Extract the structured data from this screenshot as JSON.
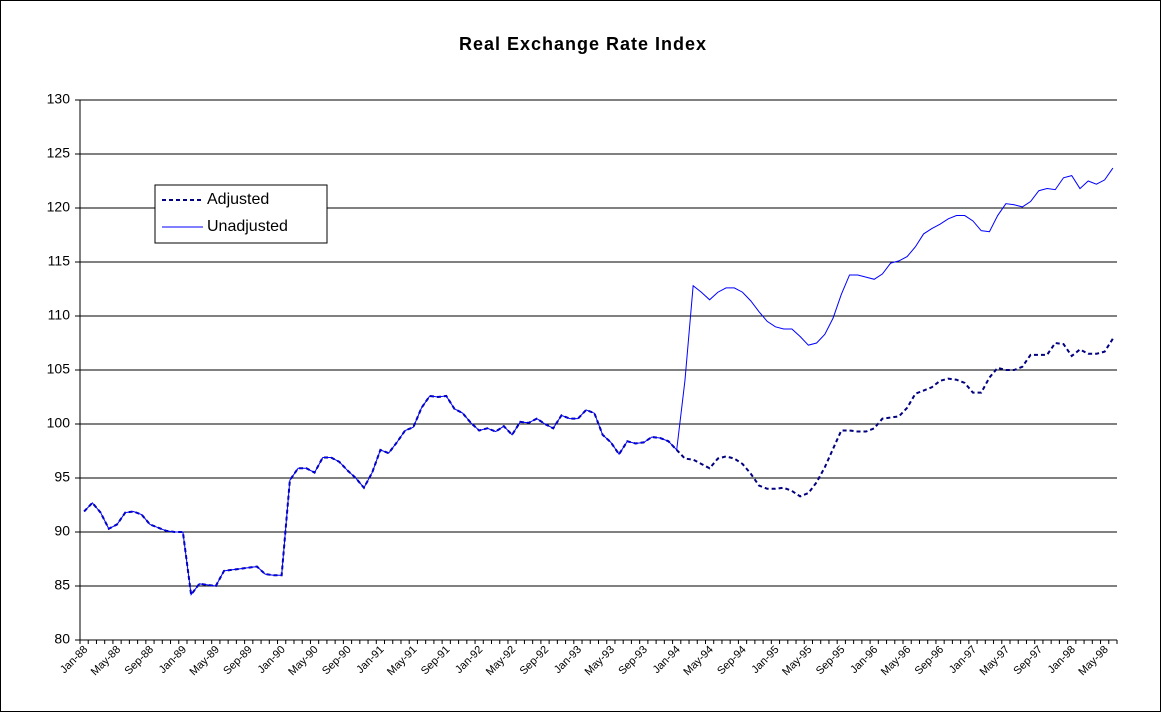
{
  "chart_data": {
    "type": "line",
    "title": "Real Exchange Rate Index",
    "categories": [
      "Jan-88",
      null,
      null,
      null,
      "May-88",
      null,
      null,
      null,
      "Sep-88",
      null,
      null,
      null,
      "Jan-89",
      null,
      null,
      null,
      "May-89",
      null,
      null,
      null,
      "Sep-89",
      null,
      null,
      null,
      "Jan-90",
      null,
      null,
      null,
      "May-90",
      null,
      null,
      null,
      "Sep-90",
      null,
      null,
      null,
      "Jan-91",
      null,
      null,
      null,
      "May-91",
      null,
      null,
      null,
      "Sep-91",
      null,
      null,
      null,
      "Jan-92",
      null,
      null,
      null,
      "May-92",
      null,
      null,
      null,
      "Sep-92",
      null,
      null,
      null,
      "Jan-93",
      null,
      null,
      null,
      "May-93",
      null,
      null,
      null,
      "Sep-93",
      null,
      null,
      null,
      "Jan-94",
      null,
      null,
      null,
      "May-94",
      null,
      null,
      null,
      "Sep-94",
      null,
      null,
      null,
      "Jan-95",
      null,
      null,
      null,
      "May-95",
      null,
      null,
      null,
      "Sep-95",
      null,
      null,
      null,
      "Jan-96",
      null,
      null,
      null,
      "May-96",
      null,
      null,
      null,
      "Sep-96",
      null,
      null,
      null,
      "Jan-97",
      null,
      null,
      null,
      "May-97",
      null,
      null,
      null,
      "Sep-97",
      null,
      null,
      null,
      "Jan-98",
      null,
      null,
      null,
      "May-98",
      null
    ],
    "series": [
      {
        "name": "Adjusted",
        "color": "#000080",
        "dashed": true,
        "values": [
          91.9,
          92.7,
          91.8,
          90.3,
          90.7,
          91.8,
          91.9,
          91.6,
          90.7,
          90.4,
          90.1,
          90.0,
          90.0,
          84.2,
          85.2,
          85.1,
          85.0,
          86.4,
          86.5,
          86.6,
          86.7,
          86.8,
          86.1,
          86.0,
          86.0,
          94.8,
          95.9,
          95.9,
          95.5,
          96.9,
          96.9,
          96.5,
          95.7,
          95.0,
          94.1,
          95.5,
          97.6,
          97.3,
          98.3,
          99.4,
          99.7,
          101.5,
          102.6,
          102.5,
          102.6,
          101.4,
          101.0,
          100.1,
          99.4,
          99.6,
          99.3,
          99.8,
          99.0,
          100.2,
          100.1,
          100.5,
          100.0,
          99.6,
          100.8,
          100.5,
          100.5,
          101.3,
          101.0,
          99.0,
          98.3,
          97.2,
          98.4,
          98.2,
          98.3,
          98.8,
          98.7,
          98.4,
          97.6,
          96.8,
          96.7,
          96.3,
          95.9,
          96.8,
          97.0,
          96.8,
          96.3,
          95.4,
          94.3,
          94.0,
          94.0,
          94.1,
          93.8,
          93.3,
          93.6,
          94.6,
          96.0,
          97.7,
          99.4,
          99.4,
          99.3,
          99.3,
          99.6,
          100.5,
          100.6,
          100.7,
          101.5,
          102.8,
          103.1,
          103.4,
          104.0,
          104.2,
          104.1,
          103.8,
          102.9,
          102.9,
          104.3,
          105.2,
          105.0,
          105.0,
          105.3,
          106.4,
          106.4,
          106.4,
          107.5,
          107.4,
          106.3,
          106.9,
          106.5,
          106.5,
          106.7,
          107.9
        ]
      },
      {
        "name": "Unadjusted",
        "color": "#0000ff",
        "dashed": false,
        "values": [
          91.9,
          92.7,
          91.8,
          90.3,
          90.7,
          91.8,
          91.9,
          91.6,
          90.7,
          90.4,
          90.1,
          90.0,
          90.0,
          84.2,
          85.2,
          85.1,
          85.0,
          86.4,
          86.5,
          86.6,
          86.7,
          86.8,
          86.1,
          86.0,
          86.0,
          94.8,
          95.9,
          95.9,
          95.5,
          96.9,
          96.9,
          96.5,
          95.7,
          95.0,
          94.1,
          95.5,
          97.6,
          97.3,
          98.3,
          99.4,
          99.7,
          101.5,
          102.6,
          102.5,
          102.6,
          101.4,
          101.0,
          100.1,
          99.4,
          99.6,
          99.3,
          99.8,
          99.0,
          100.2,
          100.1,
          100.5,
          100.0,
          99.6,
          100.8,
          100.5,
          100.5,
          101.3,
          101.0,
          99.0,
          98.3,
          97.2,
          98.4,
          98.2,
          98.3,
          98.8,
          98.7,
          98.4,
          97.6,
          104.0,
          112.8,
          112.2,
          111.5,
          112.2,
          112.6,
          112.6,
          112.2,
          111.4,
          110.4,
          109.5,
          109.0,
          108.8,
          108.8,
          108.1,
          107.3,
          107.5,
          108.3,
          109.8,
          112.0,
          113.8,
          113.8,
          113.6,
          113.4,
          113.9,
          114.9,
          115.1,
          115.5,
          116.4,
          117.6,
          118.1,
          118.5,
          119.0,
          119.3,
          119.3,
          118.8,
          117.9,
          117.8,
          119.3,
          120.4,
          120.3,
          120.1,
          120.6,
          121.6,
          121.8,
          121.7,
          122.8,
          123.0,
          121.8,
          122.5,
          122.2,
          122.6,
          123.7
        ]
      }
    ],
    "ylim": [
      80,
      130
    ],
    "yticks": [
      80,
      85,
      90,
      95,
      100,
      105,
      110,
      115,
      120,
      125,
      130
    ],
    "grid": true,
    "legend": "upper left"
  }
}
